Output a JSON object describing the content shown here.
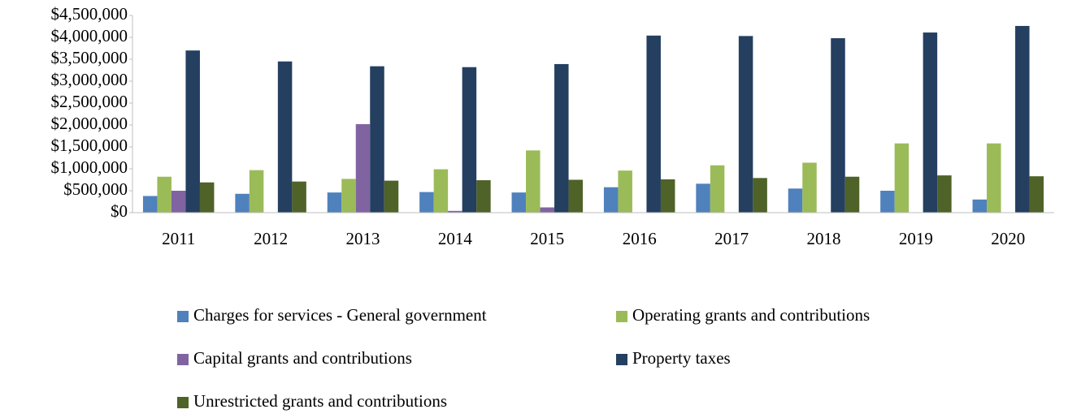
{
  "chart_data": {
    "type": "bar",
    "categories": [
      "2011",
      "2012",
      "2013",
      "2014",
      "2015",
      "2016",
      "2017",
      "2018",
      "2019",
      "2020"
    ],
    "series": [
      {
        "name": "Charges for services - General government",
        "color": "#4f81bd",
        "values": [
          380000,
          430000,
          460000,
          470000,
          460000,
          580000,
          660000,
          550000,
          500000,
          300000
        ]
      },
      {
        "name": "Operating grants and contributions",
        "color": "#9bbb59",
        "values": [
          820000,
          970000,
          770000,
          990000,
          1420000,
          960000,
          1080000,
          1140000,
          1580000,
          1580000
        ]
      },
      {
        "name": "Capital grants and contributions",
        "color": "#8064a2",
        "values": [
          500000,
          0,
          2020000,
          40000,
          120000,
          0,
          0,
          0,
          0,
          0
        ]
      },
      {
        "name": "Property taxes",
        "color": "#243f60",
        "values": [
          3700000,
          3450000,
          3340000,
          3320000,
          3390000,
          4040000,
          4030000,
          3980000,
          4110000,
          4260000
        ]
      },
      {
        "name": "Unrestricted grants and contributions",
        "color": "#4f6228",
        "values": [
          690000,
          710000,
          730000,
          740000,
          750000,
          760000,
          790000,
          820000,
          850000,
          830000
        ]
      }
    ],
    "ylim": [
      0,
      4500000
    ],
    "yticks": [
      {
        "value": 0,
        "label": "$0"
      },
      {
        "value": 500000,
        "label": "$500,000"
      },
      {
        "value": 1000000,
        "label": "$1,000,000"
      },
      {
        "value": 1500000,
        "label": "$1,500,000"
      },
      {
        "value": 2000000,
        "label": "$2,000,000"
      },
      {
        "value": 2500000,
        "label": "$2,500,000"
      },
      {
        "value": 3000000,
        "label": "$3,000,000"
      },
      {
        "value": 3500000,
        "label": "$3,500,000"
      },
      {
        "value": 4000000,
        "label": "$4,000,000"
      },
      {
        "value": 4500000,
        "label": "$4,500,000"
      }
    ],
    "grid": false,
    "legend": "bottom"
  }
}
